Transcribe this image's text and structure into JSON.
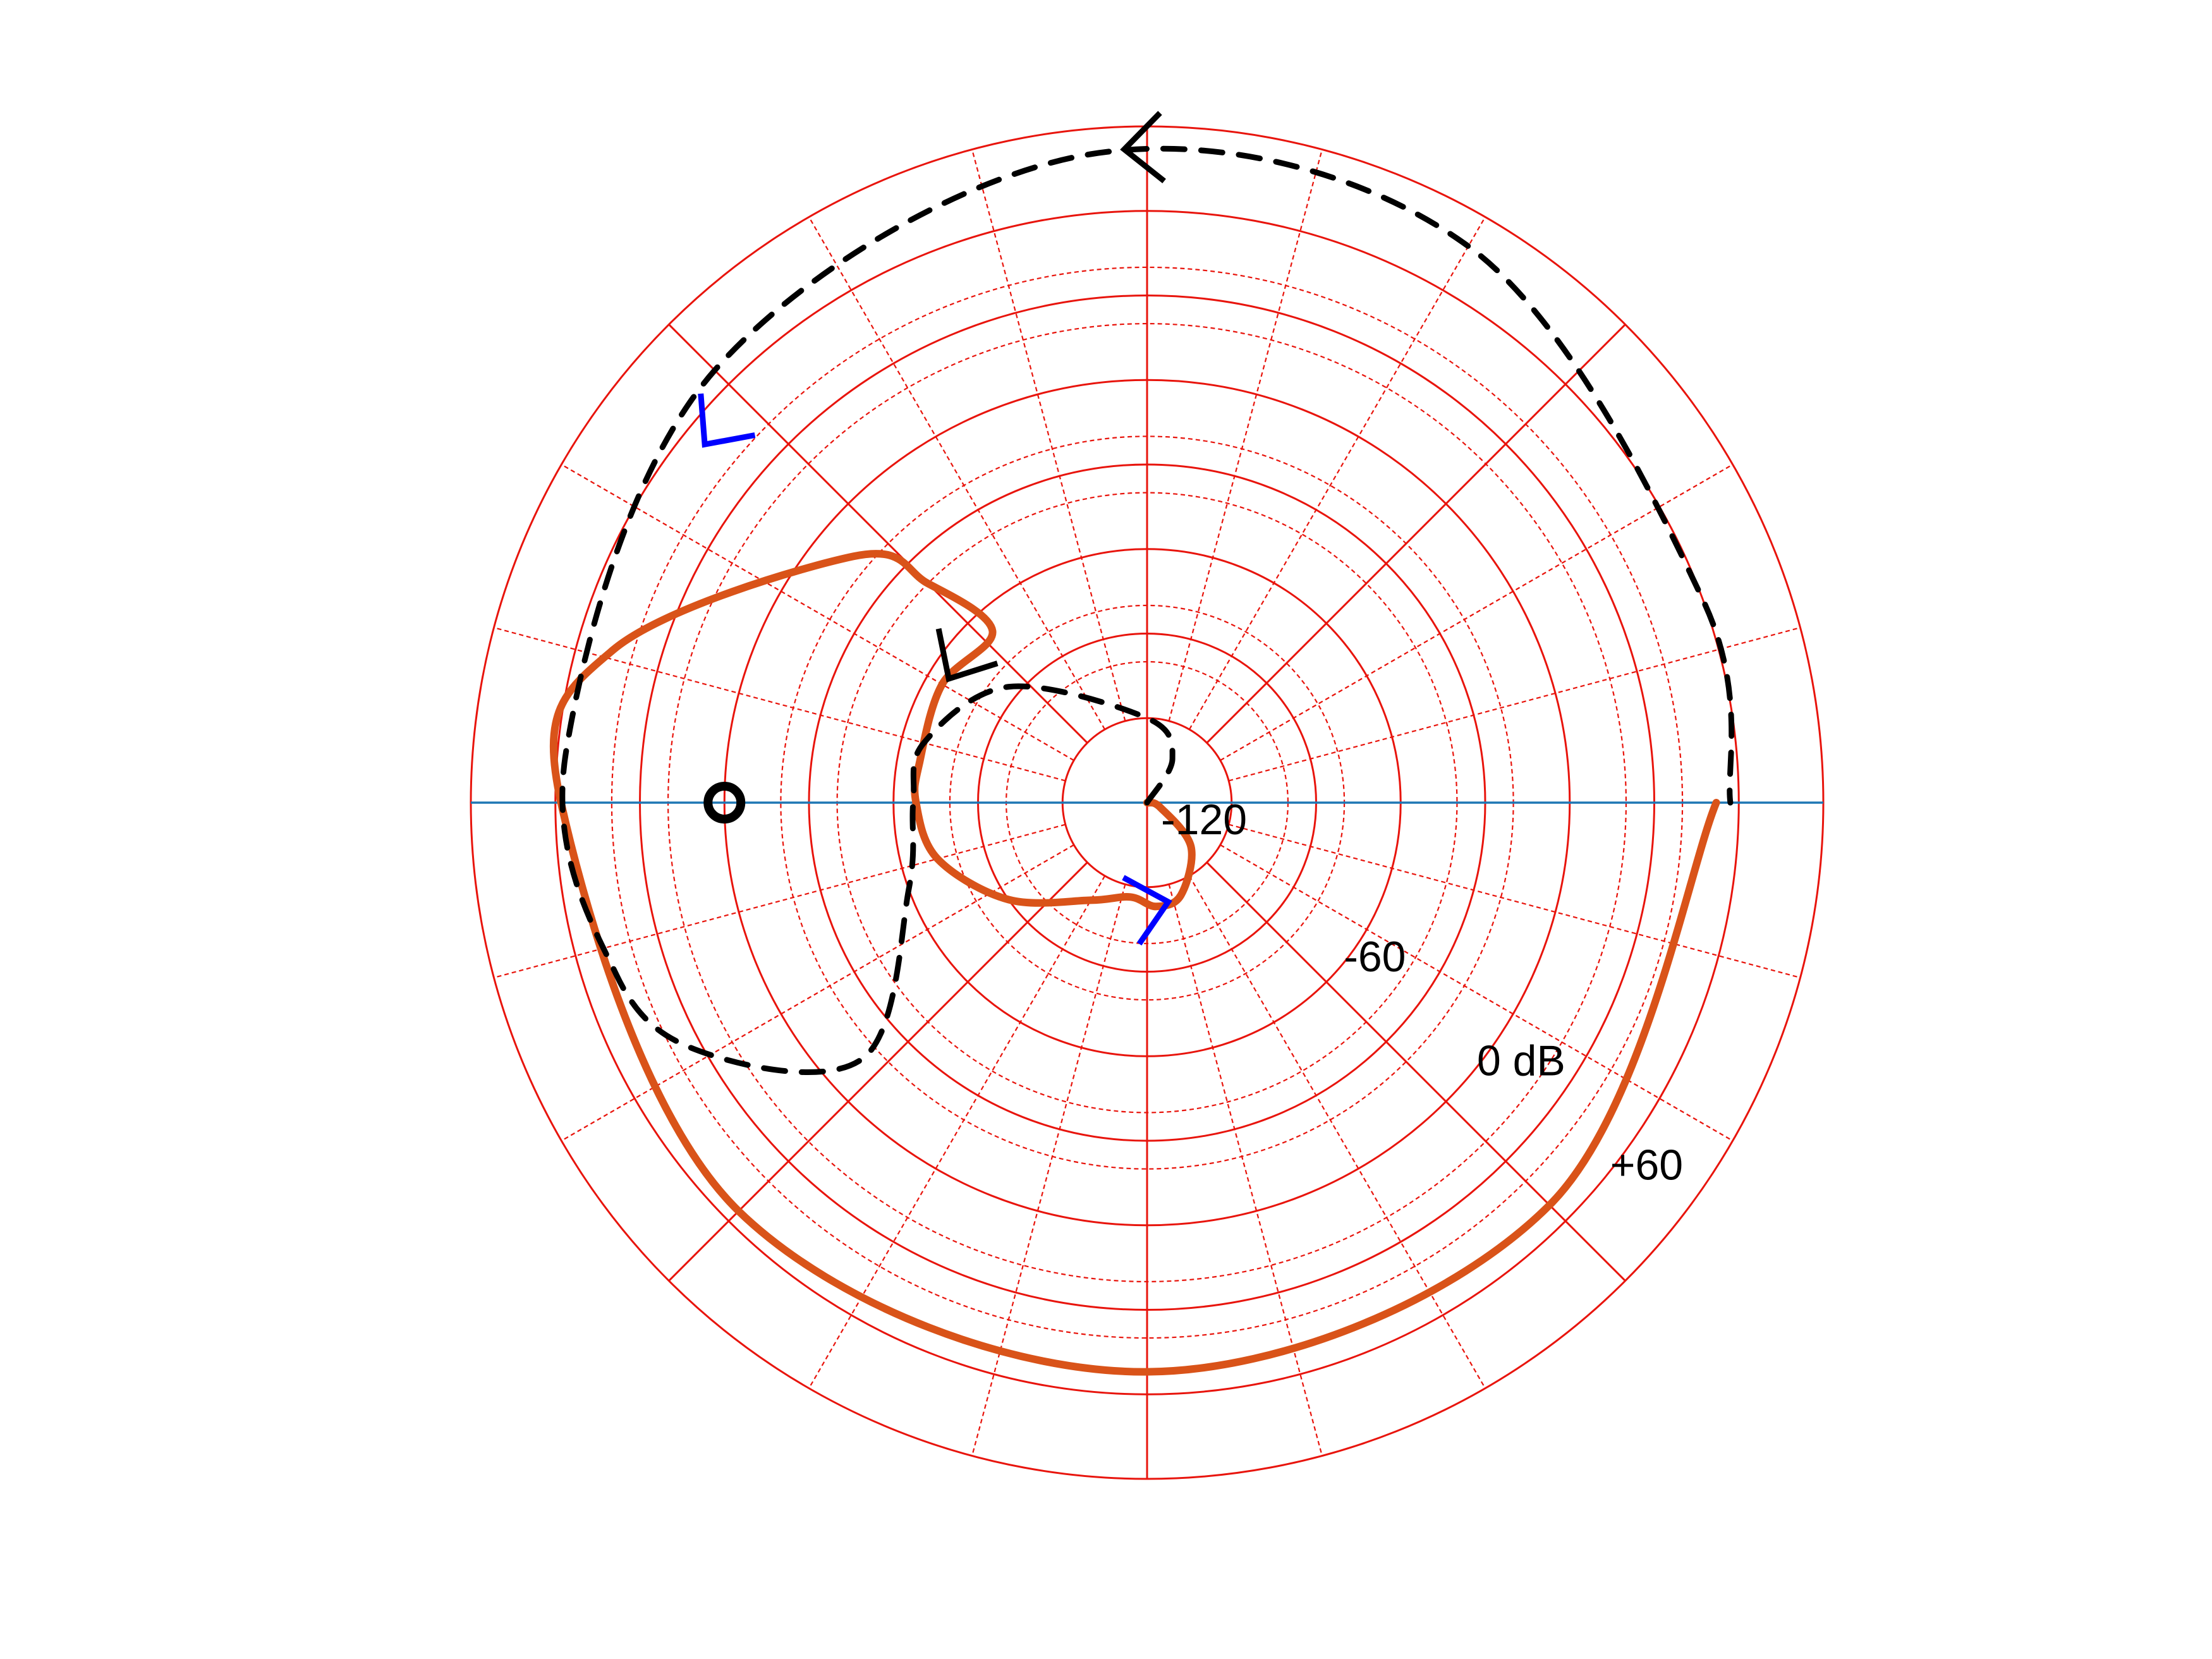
{
  "chart_data": {
    "type": "line",
    "coordinate_system": "polar log-magnitude (Nichols-style) grid",
    "radial_unit": "dB",
    "ring_labels": [
      "-120",
      "-60",
      "0 dB",
      "+60"
    ],
    "ring_label_angle_deg": -38,
    "major_rings_db": [
      -120,
      -90,
      -60,
      -30,
      0,
      30,
      60
    ],
    "minor_rings_db": [
      -100,
      -80,
      -40,
      -20,
      20,
      40
    ],
    "spokes_deg": {
      "solid_every": 45,
      "dashed_every": 15
    },
    "inner_limit_db": -150,
    "outer_limit_db": 90,
    "horizontal_axis_color": "#1f77b4",
    "critical_point": {
      "angle_deg": 180,
      "mag_db": 0,
      "symbol": "ring",
      "color": "#000000"
    },
    "series": [
      {
        "style": "solid",
        "color": "#D95319",
        "points": [
          [
            0,
            -150
          ],
          [
            -20,
            -145
          ],
          [
            -45,
            -128
          ],
          [
            -70,
            -115
          ],
          [
            -85,
            -113
          ],
          [
            -100,
            -116
          ],
          [
            -120,
            -110
          ],
          [
            -145,
            -90
          ],
          [
            -165,
            -73
          ],
          [
            -180,
            -68
          ],
          [
            -190,
            -68
          ],
          [
            -210,
            -66
          ],
          [
            -228,
            -68
          ],
          [
            -225,
            -40
          ],
          [
            -220,
            -14
          ],
          [
            -196,
            47
          ],
          [
            -180,
            58
          ],
          [
            -135,
            55
          ],
          [
            -90,
            52
          ],
          [
            -45,
            52
          ],
          [
            0,
            52
          ]
        ],
        "direction_markers": [
          {
            "angle_deg": -78,
            "mag_db": -114,
            "color": "#0000FF"
          },
          {
            "angle_deg": 141,
            "mag_db": 52,
            "color": "#0000FF"
          }
        ]
      },
      {
        "style": "dashed",
        "color": "#000000",
        "points": [
          [
            0,
            -150
          ],
          [
            60,
            -132
          ],
          [
            90,
            -120
          ],
          [
            140,
            -86
          ],
          [
            165,
            -68
          ],
          [
            180,
            -67
          ],
          [
            200,
            -60
          ],
          [
            222,
            -15
          ],
          [
            210,
            29
          ],
          [
            198,
            48
          ],
          [
            175,
            57
          ],
          [
            135,
            67
          ],
          [
            95,
            81
          ],
          [
            60,
            78
          ],
          [
            20,
            60
          ],
          [
            0,
            57
          ]
        ],
        "direction_markers": [
          {
            "angle_deg": 148,
            "mag_db": -67,
            "color": "#000000"
          },
          {
            "angle_deg": 92,
            "mag_db": 82,
            "color": "#000000"
          }
        ]
      }
    ]
  }
}
